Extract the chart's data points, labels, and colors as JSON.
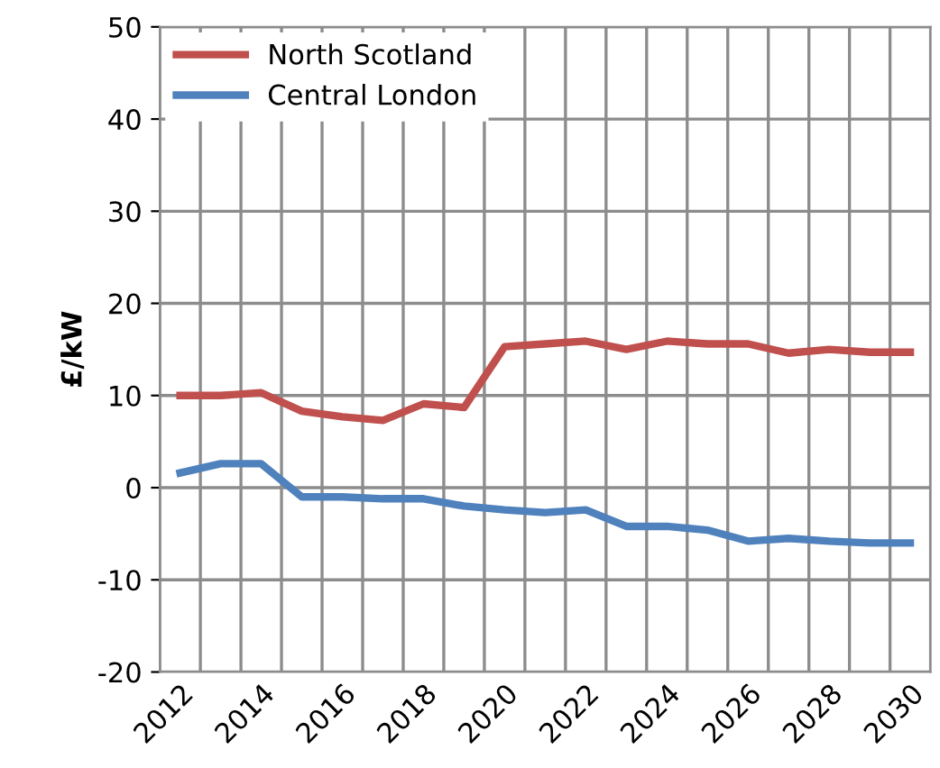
{
  "chart_data": {
    "type": "line",
    "ylabel": "£/kW",
    "categories": [
      "2012",
      null,
      "2014",
      null,
      "2016",
      null,
      "2018",
      null,
      "2020",
      null,
      "2022",
      null,
      "2024",
      null,
      "2026",
      null,
      "2028",
      null,
      "2030"
    ],
    "series": [
      {
        "name": "North Scotland",
        "color": "#c0504d",
        "values": [
          10,
          10,
          10.3,
          8.3,
          7.7,
          7.3,
          9.1,
          8.7,
          15.3,
          15.6,
          15.9,
          15.0,
          15.9,
          15.6,
          15.6,
          14.6,
          15.0,
          14.7,
          14.7
        ]
      },
      {
        "name": "Central London",
        "color": "#4f81bd",
        "values": [
          1.6,
          2.6,
          2.6,
          -1.0,
          -1.0,
          -1.2,
          -1.2,
          -2.0,
          -2.4,
          -2.7,
          -2.4,
          -4.2,
          -4.2,
          -4.6,
          -5.8,
          -5.5,
          -5.8,
          -6.0,
          -6.0
        ]
      }
    ],
    "ylim": [
      -20,
      50
    ],
    "yticks": [
      -20,
      -10,
      0,
      10,
      20,
      30,
      40,
      50
    ],
    "grid": true,
    "legend": "top left",
    "marker": "none",
    "line_style": "solid"
  }
}
